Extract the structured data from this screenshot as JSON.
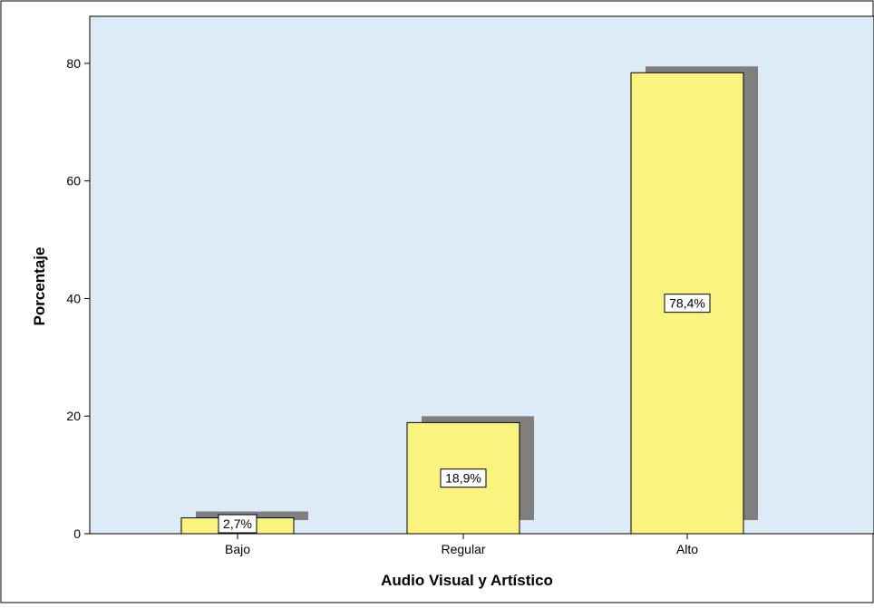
{
  "chart_data": {
    "type": "bar",
    "title": "",
    "xlabel": "Audio Visual y Artístico",
    "ylabel": "Porcentaje",
    "categories": [
      "Bajo",
      "Regular",
      "Alto"
    ],
    "values": [
      2.7,
      18.9,
      78.4
    ],
    "data_labels": [
      "2,7%",
      "18,9%",
      "78,4%"
    ],
    "ylim": [
      0,
      88
    ],
    "yticks": [
      0,
      20,
      40,
      60,
      80
    ],
    "ytick_labels": [
      "0",
      "20",
      "40",
      "60",
      "80"
    ],
    "grid": false,
    "legend": "none",
    "colors": {
      "bar_fill": "#FAF47E",
      "bar_stroke": "#000000",
      "bar_shadow": "#7F7F7F",
      "plot_background": "#DDEBF7",
      "label_box": "#ffffff"
    }
  }
}
